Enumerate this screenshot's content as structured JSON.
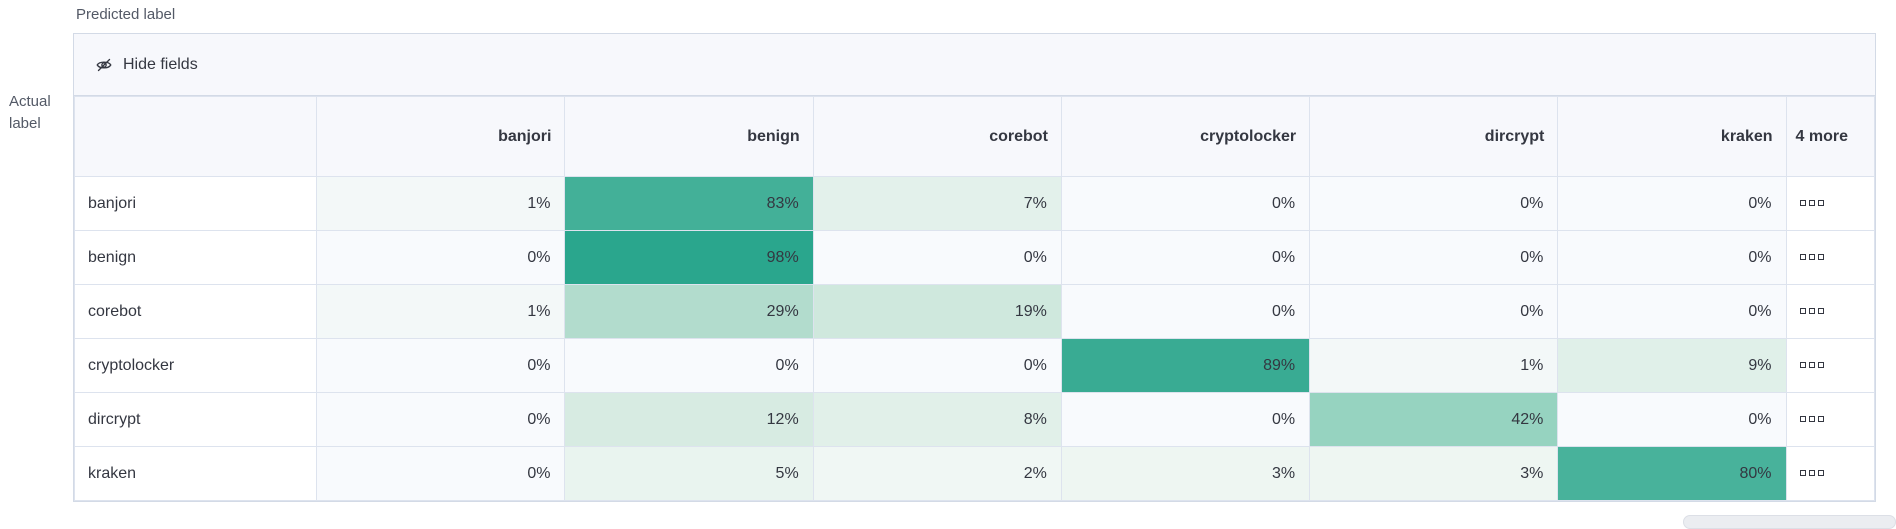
{
  "axes": {
    "predicted": "Predicted label",
    "actual": "Actual label"
  },
  "toolbar": {
    "hide_fields_label": "Hide fields",
    "hide_fields_icon": "eye-closed-icon"
  },
  "overflow_column": {
    "header": "4 more",
    "cell_icon": "boxes-horizontal-icon"
  },
  "colors": {
    "border": "#d3dae6",
    "inner_border": "#dde3ee",
    "header_bg": "#f7f8fc",
    "text": "#343741",
    "axis_text": "#535966",
    "scrollbar": "#ebedf1",
    "heat_max": "#2aa68d",
    "heat_zero": "#f8fafd"
  },
  "chart_data": {
    "type": "heatmap",
    "xlabel": "Predicted label",
    "ylabel": "Actual label",
    "columns": [
      "banjori",
      "benign",
      "corebot",
      "cryptolocker",
      "dircrypt",
      "kraken"
    ],
    "rows": [
      "banjori",
      "benign",
      "corebot",
      "cryptolocker",
      "dircrypt",
      "kraken"
    ],
    "value_suffix": "%",
    "values_percent": [
      [
        1,
        83,
        7,
        0,
        0,
        0
      ],
      [
        0,
        98,
        0,
        0,
        0,
        0
      ],
      [
        1,
        29,
        19,
        0,
        0,
        0
      ],
      [
        0,
        0,
        0,
        89,
        1,
        9
      ],
      [
        0,
        12,
        8,
        0,
        42,
        0
      ],
      [
        0,
        5,
        2,
        3,
        3,
        80
      ]
    ],
    "cell_colors": [
      [
        "#f3f8f8",
        "#43b098",
        "#e3f1eb",
        "#f8fafd",
        "#f8fafd",
        "#f8fafd"
      ],
      [
        "#f8fafd",
        "#2aa68d",
        "#f8fafd",
        "#f8fafd",
        "#f8fafd",
        "#f8fafd"
      ],
      [
        "#f3f8f8",
        "#b2dccd",
        "#cfe8dd",
        "#f8fafd",
        "#f8fafd",
        "#f8fafd"
      ],
      [
        "#f8fafd",
        "#f8fafd",
        "#f8fafd",
        "#39ab93",
        "#f3f8f8",
        "#e0f0e9"
      ],
      [
        "#f8fafd",
        "#d7ebe2",
        "#e1f0e9",
        "#f8fafd",
        "#96d3c0",
        "#f8fafd"
      ],
      [
        "#f8fafd",
        "#e9f4ef",
        "#f0f7f4",
        "#eef6f2",
        "#eef6f2",
        "#48b29b"
      ]
    ],
    "legend_position": "none",
    "grid": true
  }
}
